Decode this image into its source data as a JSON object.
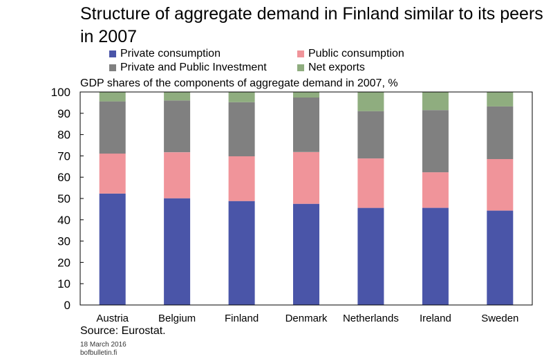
{
  "title": "Structure of aggregate demand in Finland similar to its peers in 2007",
  "subtitle": "GDP shares of the components of aggregate demand in 2007, %",
  "source": "Source: Eurostat.",
  "date": "18 March 2016",
  "site": "bofbulletin.fi",
  "colors": {
    "private_consumption": "#4a55a8",
    "public_consumption": "#f0949a",
    "investment": "#808080",
    "net_exports": "#8fad7f"
  },
  "chart_data": {
    "type": "bar",
    "stacked": true,
    "categories": [
      "Austria",
      "Belgium",
      "Finland",
      "Denmark",
      "Netherlands",
      "Ireland",
      "Sweden"
    ],
    "series": [
      {
        "name": "Private consumption",
        "color": "#4a55a8",
        "values": [
          52.3,
          50.1,
          48.8,
          47.5,
          45.6,
          45.6,
          44.3
        ]
      },
      {
        "name": "Public consumption",
        "color": "#f0949a",
        "values": [
          18.8,
          21.6,
          21.0,
          24.3,
          23.2,
          16.7,
          24.2
        ]
      },
      {
        "name": "Private and Public Investment",
        "color": "#808080",
        "values": [
          24.5,
          24.3,
          25.4,
          25.6,
          22.2,
          29.2,
          24.7
        ]
      },
      {
        "name": "Net exports",
        "color": "#8fad7f",
        "values": [
          4.4,
          4.0,
          4.8,
          2.6,
          9.0,
          8.5,
          6.8
        ]
      }
    ],
    "ylim": [
      0,
      100
    ],
    "yticks": [
      "0",
      "10",
      "20",
      "30",
      "40",
      "50",
      "60",
      "70",
      "80",
      "90",
      "100"
    ],
    "legend_position": "top",
    "grid": false
  }
}
